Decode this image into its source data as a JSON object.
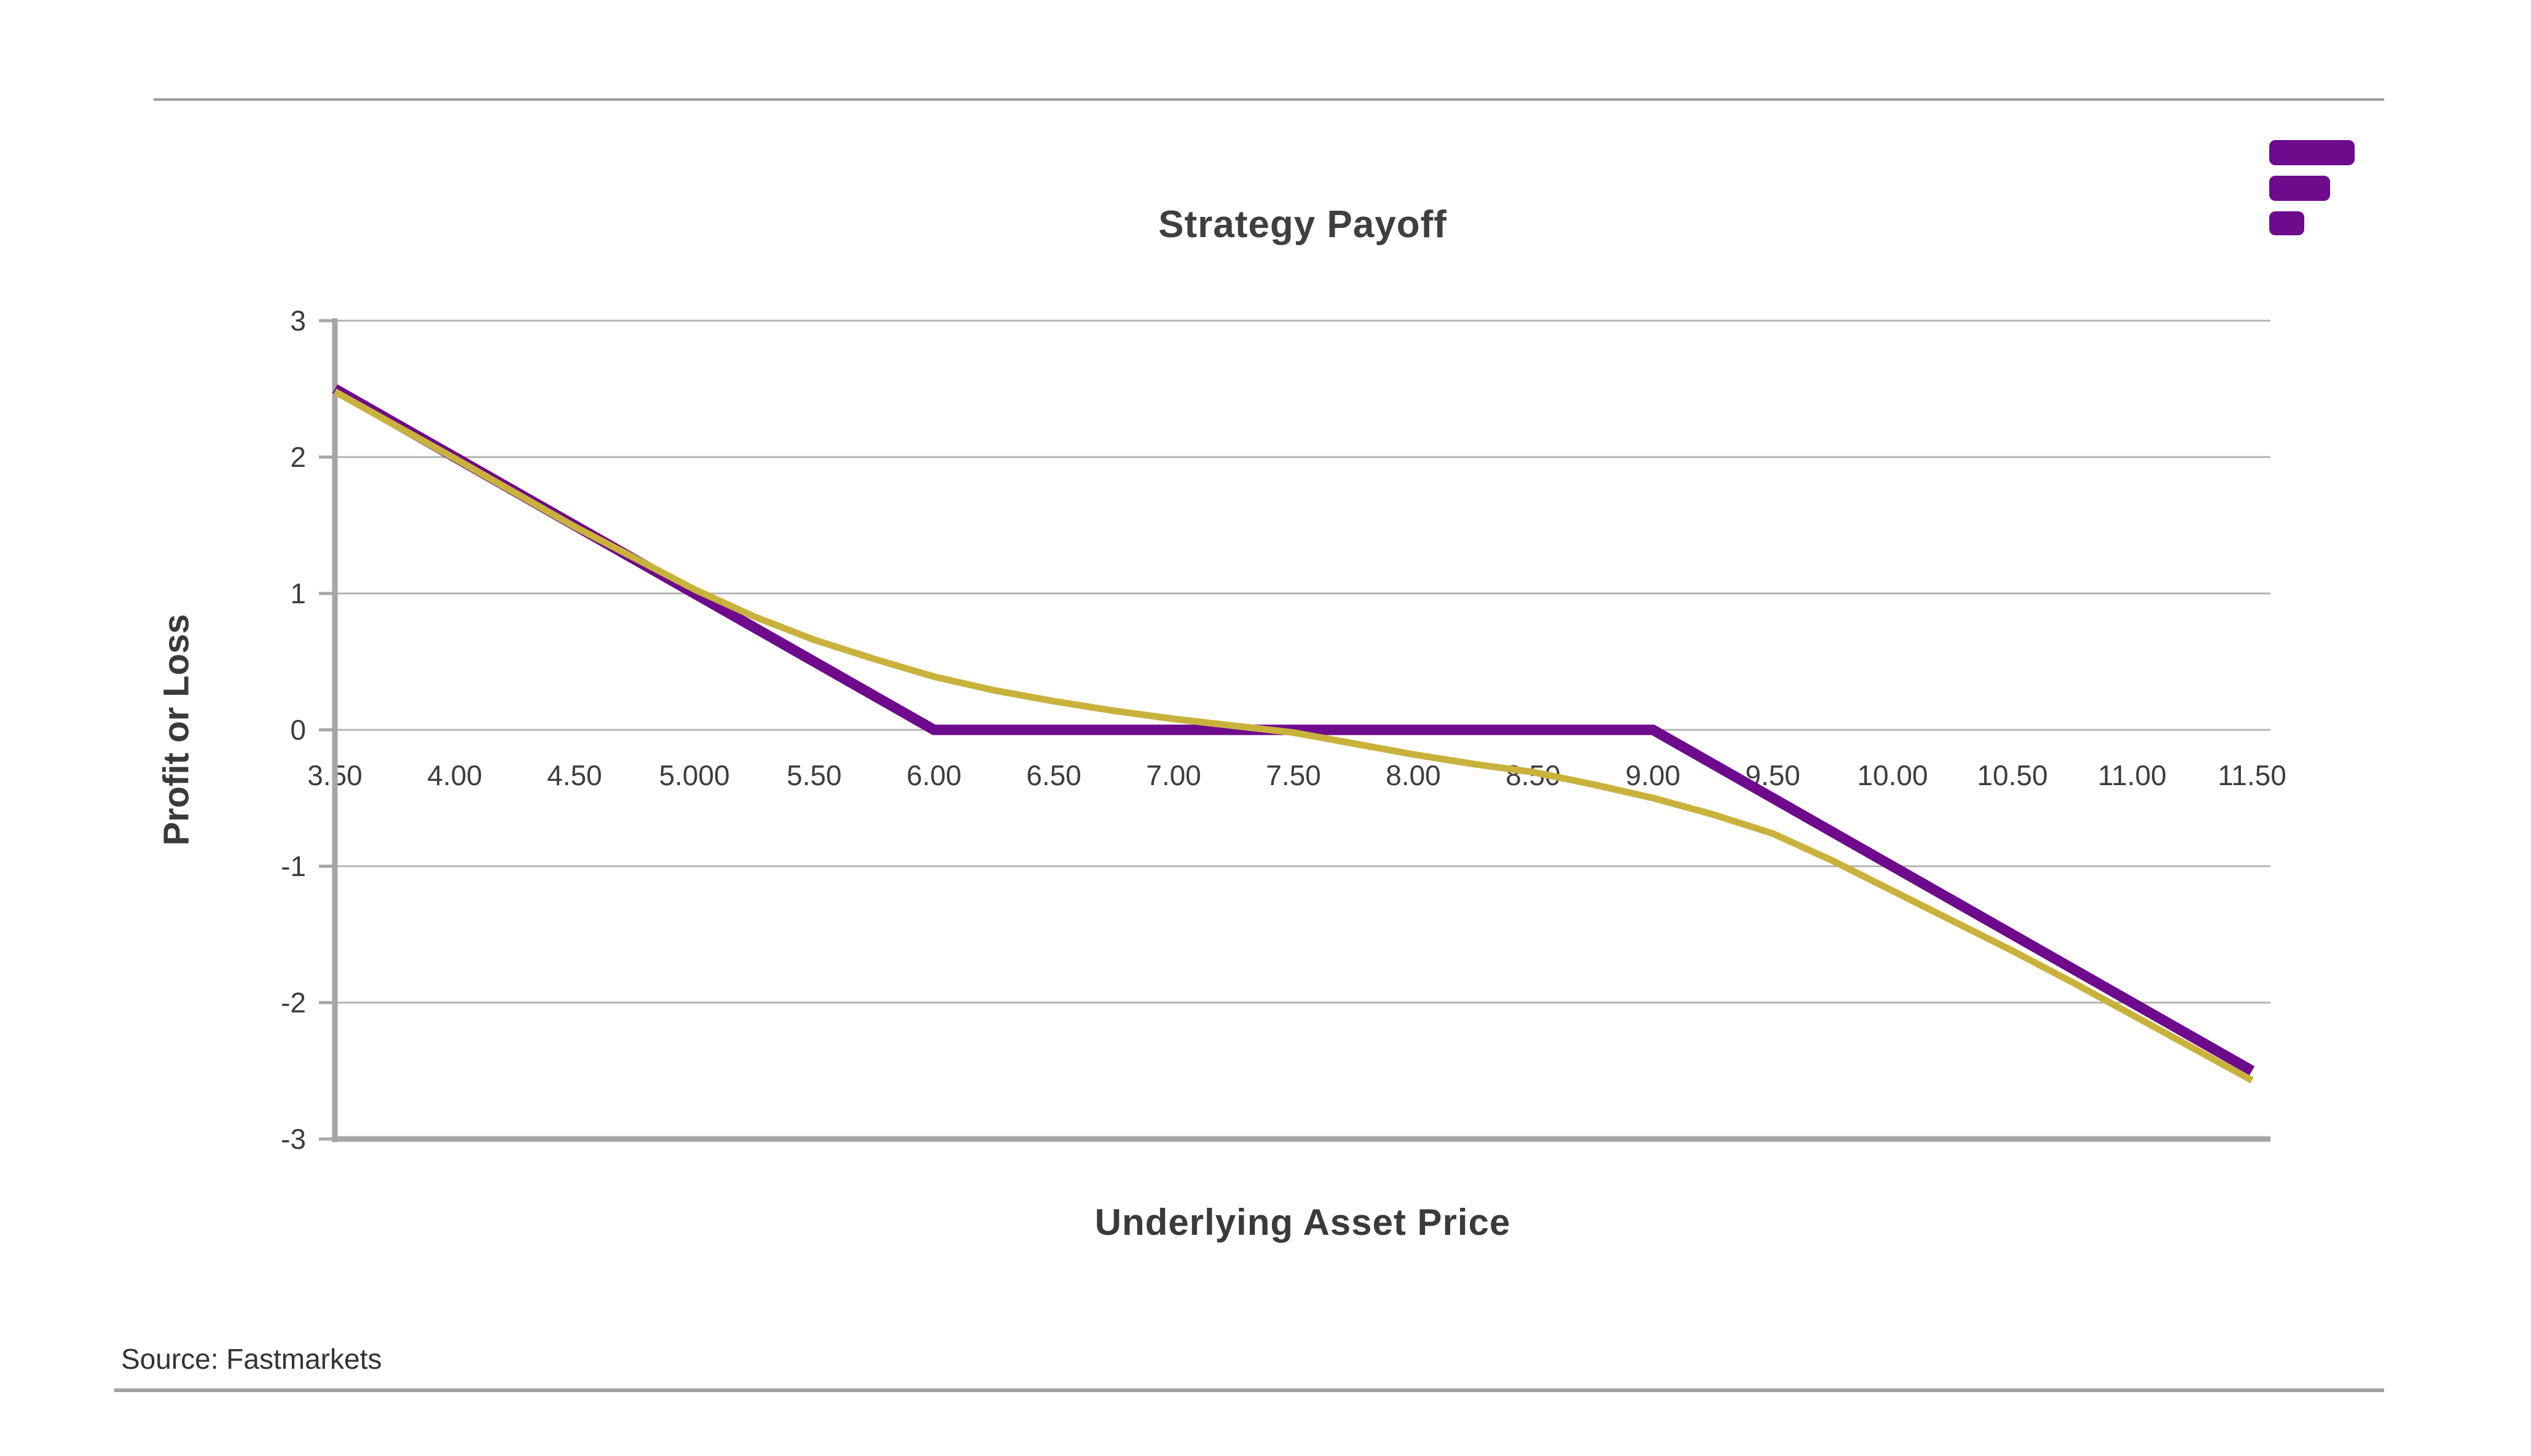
{
  "branding": {
    "logo": "fastmarkets-logo",
    "logo_color": "#6E0A8C"
  },
  "chart_data": {
    "type": "line",
    "title": "Strategy Payoff",
    "xlabel": "Underlying Asset Price",
    "ylabel": "Profit or Loss",
    "xlim": [
      3.5,
      11.5
    ],
    "ylim": [
      -3,
      3
    ],
    "grid": "horizontal",
    "legend": "none",
    "x_tick_values": [
      3.5,
      4,
      4.5,
      5,
      5.5,
      6,
      6.5,
      7,
      7.5,
      8,
      8.5,
      9,
      9.5,
      10,
      10.5,
      11,
      11.5
    ],
    "x_tick_labels": [
      "3.50",
      "4.00",
      "4.50",
      "5.000",
      "5.50",
      "6.00",
      "6.50",
      "7.00",
      "7.50",
      "8.00",
      "8.50",
      "9.00",
      "9.50",
      "10.00",
      "10.50",
      "11.00",
      "11.50"
    ],
    "y_tick_values": [
      3,
      2,
      1,
      0,
      -1,
      -2,
      -3
    ],
    "y_tick_labels": [
      "3",
      "2",
      "1",
      "0",
      "-1",
      "-2",
      "-3"
    ],
    "series": [
      {
        "id": "payoff-at-expiry",
        "color": "#6E0A8C",
        "stroke_width": 17,
        "points": [
          [
            3.5,
            2.5
          ],
          [
            6.0,
            0
          ],
          [
            9.0,
            0
          ],
          [
            11.5,
            -2.5
          ]
        ]
      },
      {
        "id": "strategy-value-curve",
        "color": "#C9B23C",
        "stroke_width": 11,
        "points": [
          [
            3.5,
            2.48
          ],
          [
            4.0,
            1.99
          ],
          [
            4.5,
            1.49
          ],
          [
            4.75,
            1.26
          ],
          [
            5.0,
            1.03
          ],
          [
            5.25,
            0.83
          ],
          [
            5.5,
            0.66
          ],
          [
            5.75,
            0.52
          ],
          [
            6.0,
            0.39
          ],
          [
            6.25,
            0.29
          ],
          [
            6.5,
            0.21
          ],
          [
            6.75,
            0.14
          ],
          [
            7.0,
            0.08
          ],
          [
            7.25,
            0.03
          ],
          [
            7.5,
            -0.02
          ],
          [
            7.75,
            -0.1
          ],
          [
            8.0,
            -0.18
          ],
          [
            8.25,
            -0.25
          ],
          [
            8.5,
            -0.31
          ],
          [
            8.75,
            -0.4
          ],
          [
            9.0,
            -0.5
          ],
          [
            9.25,
            -0.62
          ],
          [
            9.5,
            -0.76
          ],
          [
            9.75,
            -0.96
          ],
          [
            10.0,
            -1.18
          ],
          [
            10.25,
            -1.4
          ],
          [
            10.5,
            -1.62
          ],
          [
            10.75,
            -1.85
          ],
          [
            11.0,
            -2.09
          ],
          [
            11.25,
            -2.33
          ],
          [
            11.5,
            -2.57
          ]
        ]
      }
    ],
    "colors": {
      "axis": "#A6A6A6",
      "gridline": "#B3B3B3",
      "tick_text": "#3D3D3D",
      "title_text": "#3F3F3F"
    }
  },
  "footer": {
    "source": "Source: Fastmarkets"
  }
}
